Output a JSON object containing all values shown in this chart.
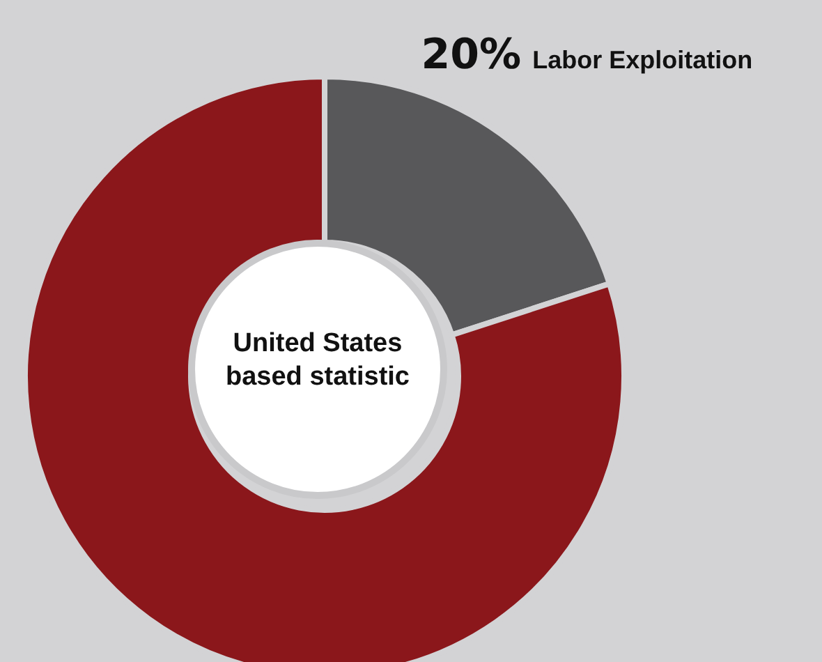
{
  "chart_data": {
    "type": "donut",
    "categories": [
      "Labor Exploitation",
      null
    ],
    "values": [
      20,
      80
    ],
    "colors": [
      "#58585a",
      "#8b171b"
    ],
    "value_labels": [
      "20%",
      null
    ],
    "annotations": [
      "United States based statistic"
    ],
    "legend": false
  }
}
